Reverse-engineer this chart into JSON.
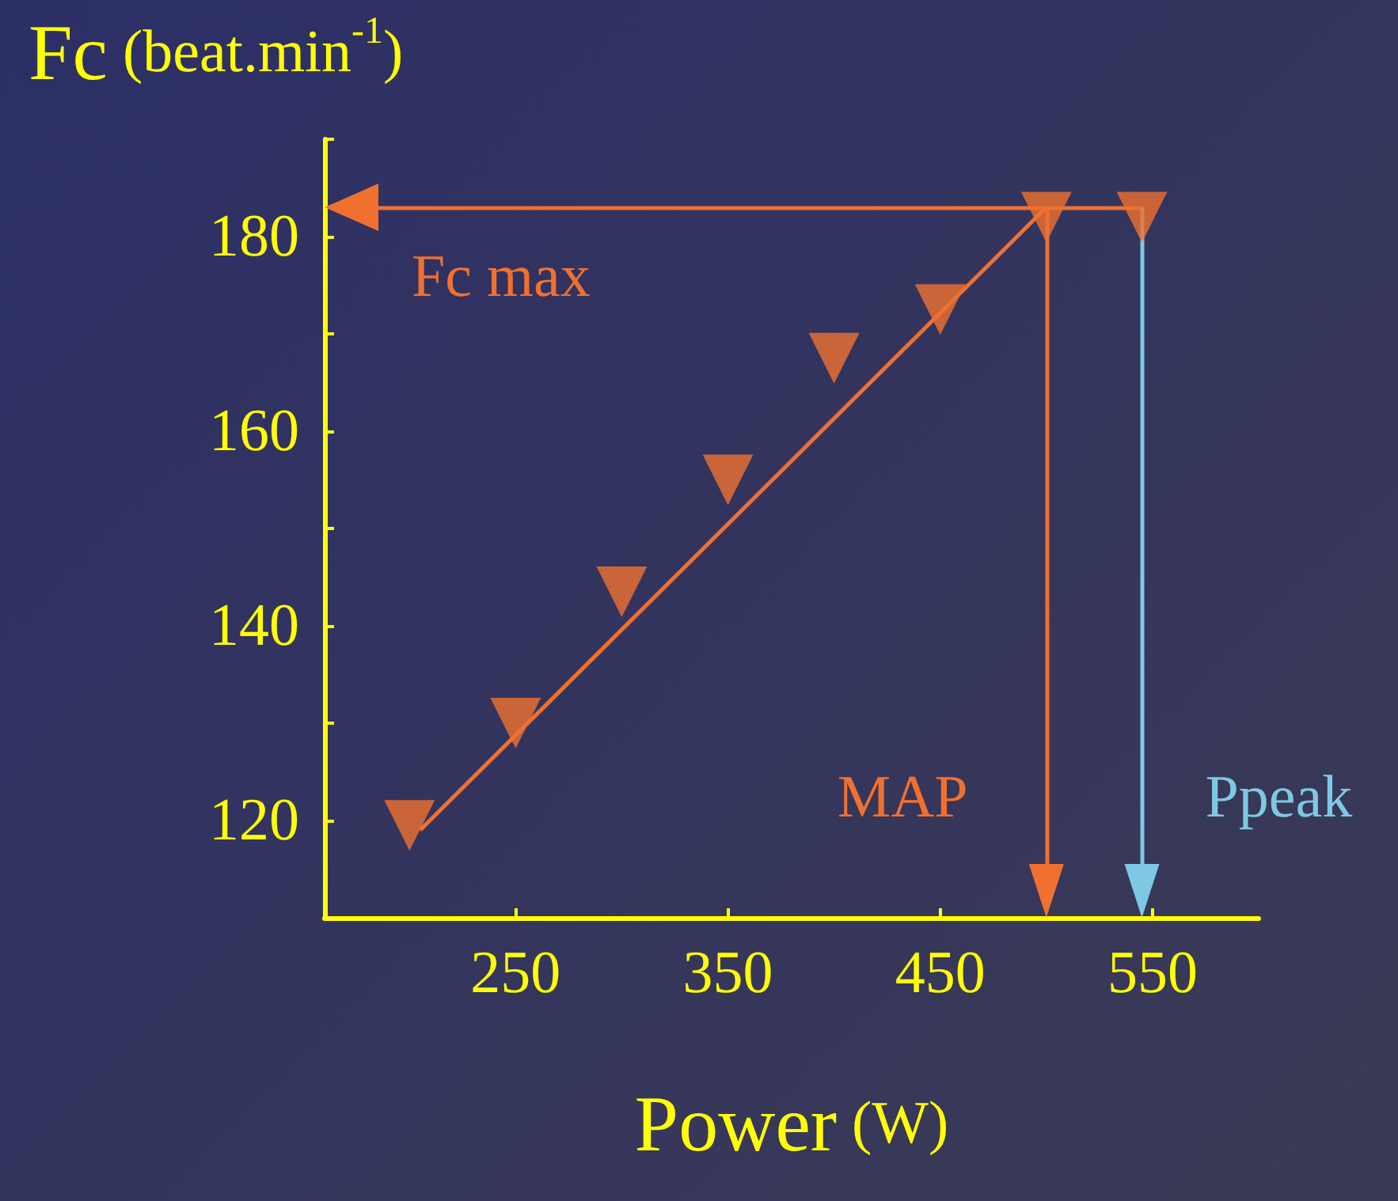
{
  "chart_data": {
    "type": "scatter",
    "xlabel": "Power (W)",
    "ylabel": "Fc (beat.min$^{-1}$)",
    "xlim": [
      160,
      600
    ],
    "xticks": [
      250,
      350,
      450,
      550
    ],
    "ylim": [
      110,
      190
    ],
    "yticks": [
      {
        "value": 110,
        "label": null
      },
      120,
      {
        "value": 130,
        "label": null
      },
      140,
      {
        "value": 150,
        "label": null
      },
      160,
      {
        "value": 170,
        "label": null
      },
      180,
      {
        "value": 190,
        "label": null
      }
    ],
    "marker": "triangle",
    "grid": false,
    "series": [
      {
        "color": "#f07030",
        "x": [
          200,
          250,
          300,
          350,
          400,
          450,
          500,
          545
        ],
        "values": [
          119.5,
          130,
          143.5,
          155,
          167.5,
          172.5,
          182,
          182
        ]
      },
      {
        "type": "line",
        "marker": "none",
        "color": "#f07030",
        "x": [
          205,
          500
        ],
        "values": [
          119,
          183
        ]
      }
    ],
    "ref_lines": [
      {
        "axis": "y",
        "value": 183,
        "label": "Fc max",
        "color": "#f07030"
      },
      {
        "axis": "x",
        "value": 500,
        "label": "MAP",
        "color": "#f07030"
      },
      {
        "axis": "x",
        "value": 545,
        "label": "Ppeak",
        "color": "#7ec8e3"
      }
    ]
  }
}
